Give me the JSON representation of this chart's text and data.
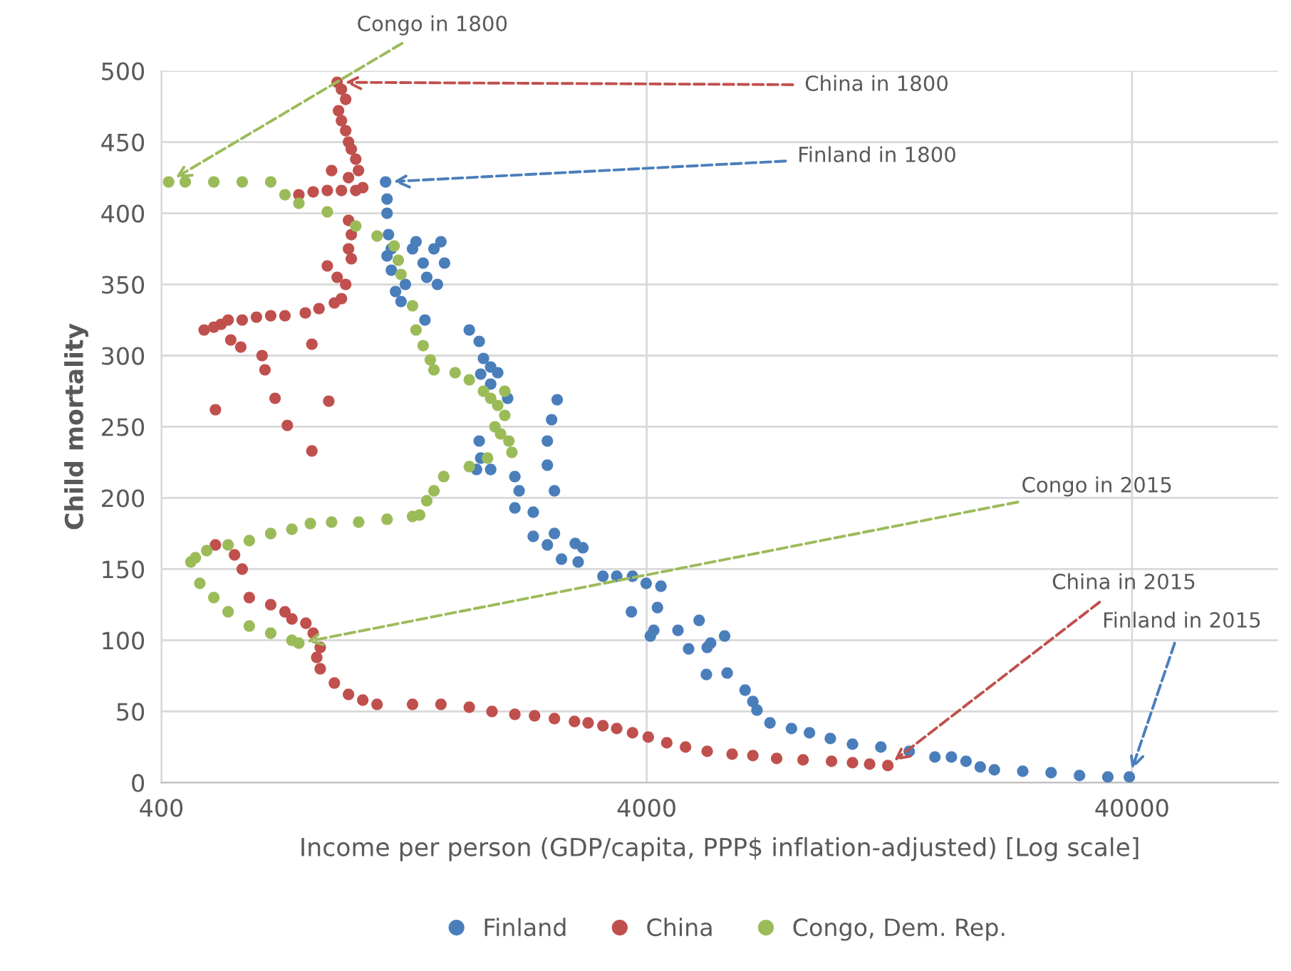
{
  "chart_data": {
    "type": "scatter",
    "xlabel": "Income per person (GDP/capita, PPP$ inflation-adjusted) [Log scale]",
    "ylabel": "Child mortality",
    "log": "x",
    "xlim": [
      400,
      80000
    ],
    "xticks": [
      400,
      4000,
      40000
    ],
    "ylim": [
      0,
      500
    ],
    "yticks": [
      0,
      50,
      100,
      150,
      200,
      250,
      300,
      350,
      400,
      450,
      500
    ],
    "grid": true,
    "legend": "bottom",
    "marker": "circle",
    "series": [
      {
        "name": "Finland",
        "color": "#4a7ebb",
        "x": [
          1159,
          1167,
          1167,
          1175,
          1191,
          1167,
          1191,
          1215,
          1247,
          1273,
          1317,
          1339,
          1385,
          1409,
          1458,
          1507,
          1533,
          1482,
          1397,
          1724,
          1807,
          1844,
          1908,
          1973,
          1820,
          1908,
          2068,
          2616,
          2548,
          2497,
          2497,
          2582,
          1807,
          1820,
          1784,
          1908,
          2140,
          2184,
          2140,
          2335,
          2582,
          2335,
          2497,
          2850,
          2955,
          2890,
          2670,
          3250,
          3470,
          3740,
          3720,
          4070,
          4137,
          4210,
          3990,
          4280,
          4640,
          4880,
          5130,
          5330,
          5417,
          5790,
          5310,
          5860,
          6380,
          6620,
          6750,
          7180,
          7950,
          8660,
          9560,
          10620,
          12150,
          13900,
          15700,
          16980,
          18200,
          19470,
          20820,
          23820,
          27250,
          31180,
          35670,
          39500
        ],
        "values": [
          422,
          410,
          400,
          385,
          375,
          370,
          360,
          345,
          338,
          350,
          375,
          380,
          365,
          355,
          375,
          380,
          365,
          350,
          325,
          318,
          310,
          298,
          292,
          288,
          287,
          280,
          270,
          269,
          255,
          240,
          223,
          205,
          240,
          228,
          220,
          220,
          215,
          205,
          193,
          190,
          175,
          173,
          167,
          168,
          165,
          155,
          157,
          145,
          145,
          145,
          120,
          103,
          107,
          123,
          140,
          138,
          107,
          94,
          114,
          95,
          98,
          103,
          76,
          77,
          65,
          57,
          51,
          42,
          38,
          35,
          31,
          27,
          25,
          22,
          18,
          18,
          15,
          11,
          9,
          8,
          7,
          5,
          4,
          4
        ]
      },
      {
        "name": "China",
        "color": "#c0504d",
        "x": [
          921,
          940,
          959,
          927,
          940,
          959,
          972,
          985,
          1006,
          1019,
          897,
          972,
          768,
          822,
          879,
          940,
          1006,
          1040,
          972,
          985,
          972,
          985,
          879,
          921,
          959,
          940,
          909,
          845,
          792,
          719,
          672,
          628,
          587,
          549,
          531,
          513,
          490,
          556,
          583,
          645,
          654,
          686,
          517,
          727,
          817,
          885,
          817,
          517,
          566,
          587,
          607,
          672,
          719,
          743,
          794,
          822,
          850,
          836,
          850,
          909,
          972,
          1040,
          1113,
          1317,
          1507,
          1724,
          1920,
          2140,
          2350,
          2582,
          2840,
          3030,
          3250,
          3470,
          3740,
          4030,
          4400,
          4810,
          5330,
          6000,
          6620,
          7410,
          8400,
          9615,
          10620,
          11520,
          12560
        ],
        "values": [
          492,
          487,
          480,
          472,
          465,
          458,
          450,
          445,
          438,
          430,
          430,
          425,
          413,
          415,
          416,
          416,
          416,
          418,
          395,
          385,
          375,
          368,
          363,
          355,
          350,
          340,
          337,
          333,
          330,
          328,
          328,
          327,
          325,
          325,
          322,
          320,
          318,
          311,
          306,
          300,
          290,
          270,
          262,
          251,
          233,
          268,
          308,
          167,
          160,
          150,
          130,
          125,
          120,
          115,
          112,
          105,
          95,
          88,
          80,
          70,
          62,
          58,
          55,
          55,
          55,
          53,
          50,
          48,
          47,
          45,
          43,
          42,
          40,
          38,
          35,
          32,
          28,
          25,
          22,
          20,
          19,
          17,
          16,
          15,
          14,
          13,
          12
        ]
      },
      {
        "name": "Congo, Dem. Rep.",
        "color": "#9bbb59",
        "x": [
          414,
          448,
          513,
          587,
          672,
          719,
          768,
          879,
          1006,
          1113,
          1207,
          1231,
          1247,
          1317,
          1339,
          1385,
          1433,
          1458,
          1612,
          1724,
          1844,
          1908,
          1973,
          2040,
          1947,
          2000,
          2080,
          2040,
          2110,
          1880,
          1724,
          1527,
          1458,
          1409,
          1362,
          1317,
          1167,
          1020,
          897,
          811,
          743,
          672,
          607,
          549,
          496,
          470,
          460,
          480,
          513,
          549,
          607,
          672,
          743,
          768
        ],
        "values": [
          422,
          422,
          422,
          422,
          422,
          413,
          407,
          401,
          391,
          384,
          377,
          367,
          357,
          335,
          318,
          307,
          297,
          290,
          288,
          283,
          275,
          270,
          265,
          258,
          250,
          245,
          240,
          275,
          232,
          228,
          222,
          215,
          205,
          198,
          188,
          187,
          185,
          183,
          183,
          182,
          178,
          175,
          170,
          167,
          163,
          158,
          155,
          140,
          130,
          120,
          110,
          105,
          100,
          98
        ]
      }
    ],
    "annotations": [
      {
        "text": "Congo in 1800",
        "x": 414,
        "y": 422
      },
      {
        "text": "China in 1800",
        "x": 921,
        "y": 492
      },
      {
        "text": "Finland in 1800",
        "x": 1159,
        "y": 422
      },
      {
        "text": "Congo in 2015",
        "x": 768,
        "y": 98
      },
      {
        "text": "China in 2015",
        "x": 12560,
        "y": 12
      },
      {
        "text": "Finland in 2015",
        "x": 39500,
        "y": 4
      }
    ]
  }
}
